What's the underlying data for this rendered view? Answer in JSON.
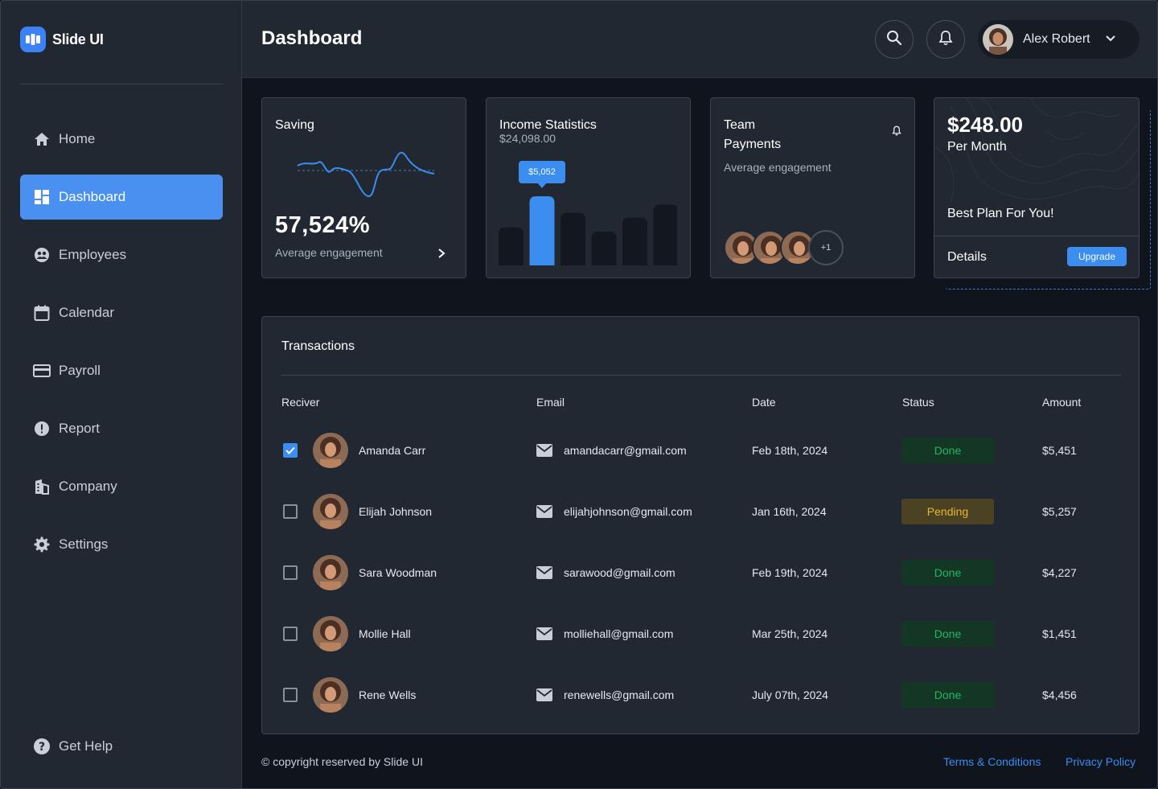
{
  "app": {
    "name": "Slide UI"
  },
  "sidebar": {
    "items": [
      {
        "label": "Home",
        "icon": "home-icon",
        "active": false
      },
      {
        "label": "Dashboard",
        "icon": "dashboard-icon",
        "active": true
      },
      {
        "label": "Employees",
        "icon": "employees-icon",
        "active": false
      },
      {
        "label": "Calendar",
        "icon": "calendar-icon",
        "active": false
      },
      {
        "label": "Payroll",
        "icon": "payroll-icon",
        "active": false
      },
      {
        "label": "Report",
        "icon": "report-icon",
        "active": false
      },
      {
        "label": "Company",
        "icon": "company-icon",
        "active": false
      },
      {
        "label": "Settings",
        "icon": "settings-icon",
        "active": false
      }
    ],
    "help_label": "Get Help"
  },
  "header": {
    "title": "Dashboard",
    "user_name": "Alex Robert"
  },
  "cards": {
    "saving": {
      "title": "Saving",
      "value": "57,524%",
      "caption": "Average engagement"
    },
    "income": {
      "title": "Income Statistics",
      "amount": "$24,098.00",
      "tooltip": "$5,052",
      "highlight_index": 1,
      "bars": [
        0.55,
        1.0,
        0.76,
        0.49,
        0.69,
        0.88
      ]
    },
    "team": {
      "title_line1": "Team",
      "title_line2": "Payments",
      "caption": "Average engagement",
      "extra_count": "+1"
    },
    "plan": {
      "price": "$248.00",
      "period": "Per Month",
      "tagline": "Best Plan For You!",
      "details_label": "Details",
      "upgrade_label": "Upgrade"
    }
  },
  "transactions": {
    "title": "Transactions",
    "columns": {
      "receiver": "Reciver",
      "email": "Email",
      "date": "Date",
      "status": "Status",
      "amount": "Amount"
    },
    "rows": [
      {
        "name": "Amanda Carr",
        "email": "amandacarr@gmail.com",
        "date": "Feb 18th, 2024",
        "status": "Done",
        "amount": "$5,451",
        "checked": true
      },
      {
        "name": "Elijah Johnson",
        "email": "elijahjohnson@gmail.com",
        "date": "Jan 16th, 2024",
        "status": "Pending",
        "amount": "$5,257",
        "checked": false
      },
      {
        "name": "Sara Woodman",
        "email": "sarawood@gmail.com",
        "date": "Feb 19th, 2024",
        "status": "Done",
        "amount": "$4,227",
        "checked": false
      },
      {
        "name": "Mollie Hall",
        "email": "molliehall@gmail.com",
        "date": "Mar 25th, 2024",
        "status": "Done",
        "amount": "$1,451",
        "checked": false
      },
      {
        "name": "Rene Wells",
        "email": "renewells@gmail.com",
        "date": "July 07th, 2024",
        "status": "Done",
        "amount": "$4,456",
        "checked": false
      }
    ]
  },
  "footer": {
    "copyright": "© copyright reserved by Slide UI",
    "terms": "Terms & Conditions",
    "privacy": "Privacy Policy"
  },
  "colors": {
    "accent": "#3b8df0",
    "done": "#22b864",
    "pending": "#e9b72b"
  }
}
